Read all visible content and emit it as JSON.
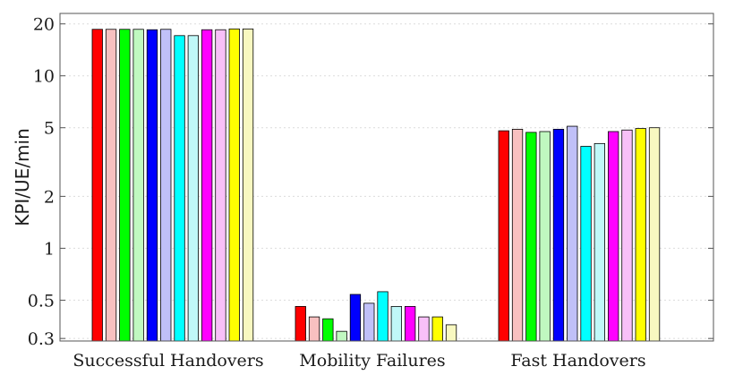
{
  "chart_data": {
    "type": "bar",
    "title": "",
    "xlabel": "",
    "ylabel": "KPI/UE/min",
    "yscale": "log",
    "ylim": [
      0.29,
      23
    ],
    "yticks": [
      0.3,
      0.5,
      1,
      2,
      5,
      10,
      20
    ],
    "ytick_labels": [
      "0.3",
      "0.5",
      "1",
      "2",
      "5",
      "10",
      "20"
    ],
    "grid": true,
    "legend": "none",
    "categories": [
      "Successful Handovers",
      "Mobility Failures",
      "Fast Handovers"
    ],
    "series": [
      {
        "color": "#ff0000",
        "values": [
          18.6,
          0.46,
          4.8
        ]
      },
      {
        "color": "#f8c0c0",
        "values": [
          18.6,
          0.4,
          4.9
        ]
      },
      {
        "color": "#00ff00",
        "values": [
          18.6,
          0.39,
          4.7
        ]
      },
      {
        "color": "#c0f8c0",
        "values": [
          18.6,
          0.33,
          4.75
        ]
      },
      {
        "color": "#0000ff",
        "values": [
          18.5,
          0.54,
          4.9
        ]
      },
      {
        "color": "#c0c0f8",
        "values": [
          18.6,
          0.48,
          5.1
        ]
      },
      {
        "color": "#00ffff",
        "values": [
          17.1,
          0.56,
          3.9
        ]
      },
      {
        "color": "#c0f8f8",
        "values": [
          17.1,
          0.46,
          4.05
        ]
      },
      {
        "color": "#ff00ff",
        "values": [
          18.5,
          0.46,
          4.75
        ]
      },
      {
        "color": "#f8c0f8",
        "values": [
          18.5,
          0.4,
          4.85
        ]
      },
      {
        "color": "#ffff00",
        "values": [
          18.7,
          0.4,
          4.95
        ]
      },
      {
        "color": "#f8f8c0",
        "values": [
          18.7,
          0.36,
          5.0
        ]
      }
    ]
  }
}
